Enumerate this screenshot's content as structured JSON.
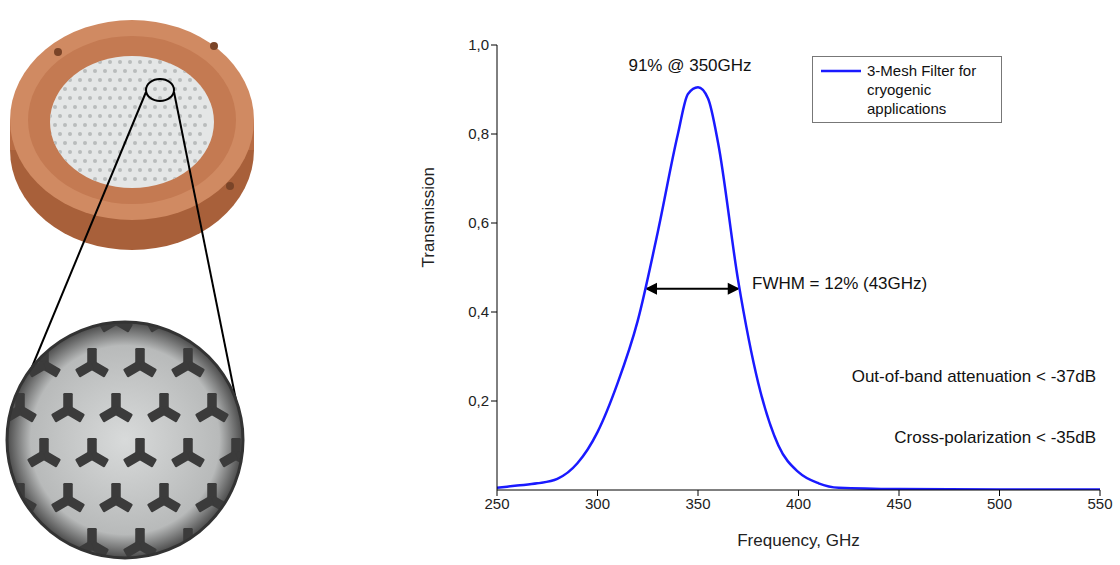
{
  "chart_data": {
    "type": "line",
    "x": [
      250,
      260,
      270,
      280,
      290,
      300,
      310,
      320,
      330,
      340,
      345,
      350,
      355,
      360,
      370,
      380,
      390,
      400,
      410,
      420,
      450,
      500,
      550
    ],
    "series": [
      {
        "name": "3-Mesh Filter for cryogenic applications",
        "color": "#1a1aff",
        "values": [
          0.005,
          0.01,
          0.015,
          0.025,
          0.06,
          0.13,
          0.24,
          0.38,
          0.58,
          0.8,
          0.89,
          0.905,
          0.88,
          0.78,
          0.47,
          0.24,
          0.1,
          0.04,
          0.015,
          0.005,
          0.002,
          0.001,
          0.001
        ]
      }
    ],
    "xlim": [
      250,
      550
    ],
    "xticks": [
      250,
      300,
      350,
      400,
      450,
      500,
      550
    ],
    "ylim": [
      0,
      1.0
    ],
    "yticks": [
      {
        "value": 0.2,
        "label": "0,2"
      },
      {
        "value": 0.4,
        "label": "0,4"
      },
      {
        "value": 0.6,
        "label": "0,6"
      },
      {
        "value": 0.8,
        "label": "0,8"
      },
      {
        "value": 1.0,
        "label": "1,0"
      }
    ],
    "x_label": "Frequency, GHz",
    "y_label": "Transmission",
    "annotations": [
      "91% @ 350GHz",
      "FWHM = 12% (43GHz)",
      "Out-of-band attenuation < -37dB",
      "Cross-polarization < -35dB"
    ],
    "legend": "upper right",
    "grid": false
  }
}
